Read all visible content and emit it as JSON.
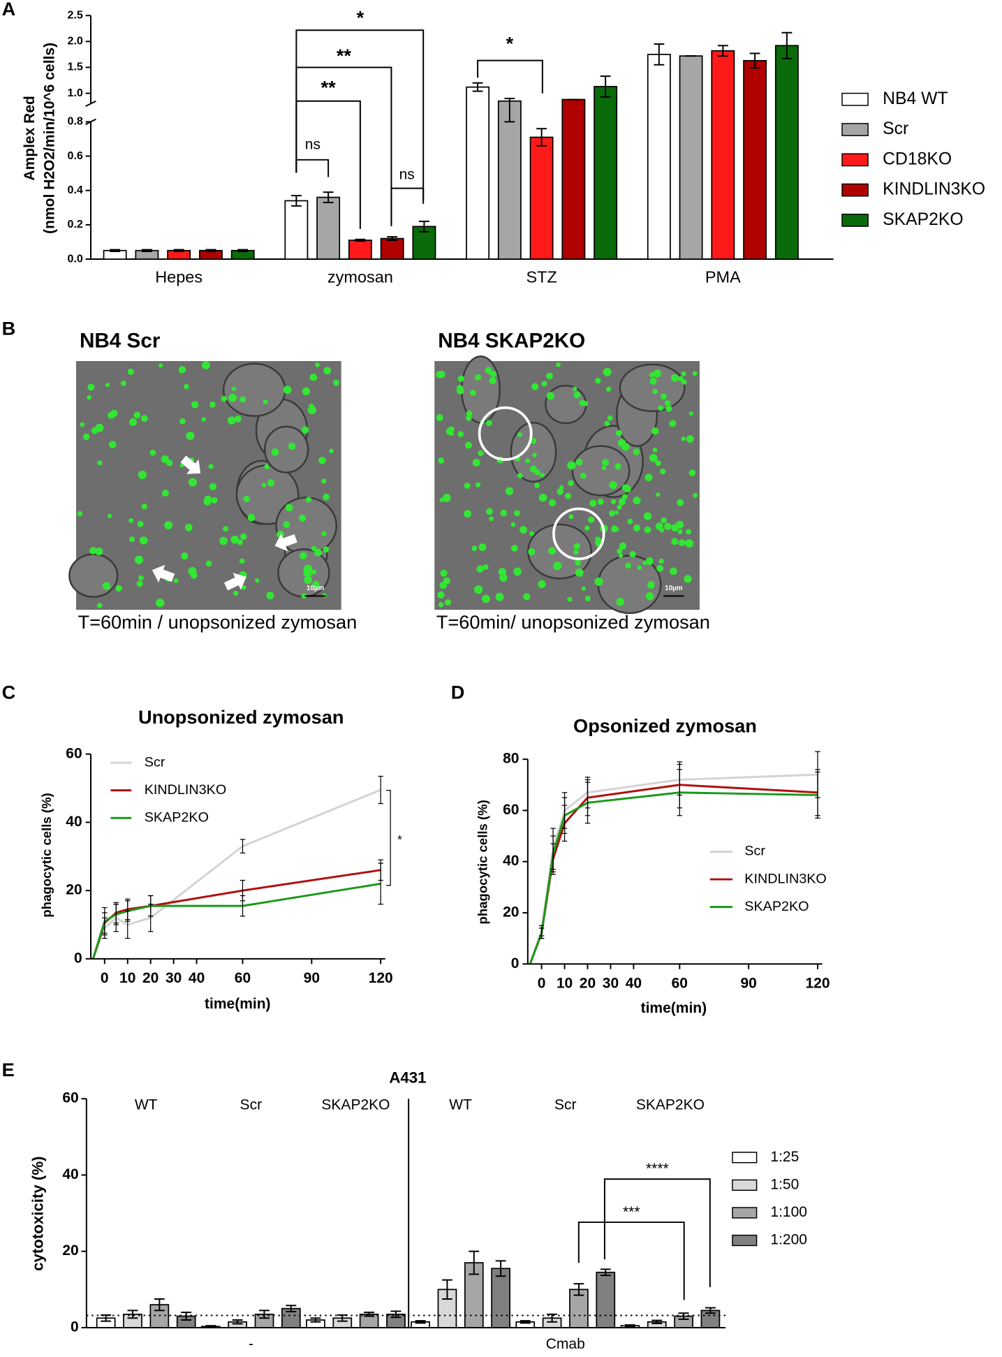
{
  "chart_data": [
    {
      "label": "A",
      "type": "bar",
      "y_label": [
        "Amplex Red",
        "(nmol H2O2/min/10^6 cells)"
      ],
      "categories": [
        "Hepes",
        "zymosan",
        "STZ",
        "PMA"
      ],
      "series": [
        {
          "name": "NB4 WT",
          "color": "#ffffff",
          "values": [
            0.05,
            0.34,
            1.12,
            1.75
          ],
          "errors": [
            0.005,
            0.03,
            0.08,
            0.2
          ]
        },
        {
          "name": "Scr",
          "color": "#a6a6a6",
          "values": [
            0.05,
            0.36,
            0.85,
            1.72
          ],
          "errors": [
            0.005,
            0.03,
            0.05,
            0
          ]
        },
        {
          "name": "CD18KO",
          "color": "#ff1a1a",
          "values": [
            0.05,
            0.11,
            0.71,
            1.82
          ],
          "errors": [
            0.005,
            0.005,
            0.05,
            0.1
          ]
        },
        {
          "name": "KINDLIN3KO",
          "color": "#b00000",
          "values": [
            0.05,
            0.12,
            0.88,
            1.63
          ],
          "errors": [
            0.005,
            0.01,
            0,
            0.14
          ]
        },
        {
          "name": "SKAP2KO",
          "color": "#0a6b0a",
          "values": [
            0.05,
            0.19,
            1.13,
            1.92
          ],
          "errors": [
            0.005,
            0.03,
            0.2,
            0.25
          ]
        }
      ],
      "ylim": [
        0,
        2.5
      ],
      "axis_break": 0.8,
      "yticks": [
        {
          "value": 0,
          "label": "0.0"
        },
        0.2,
        0.4,
        0.6,
        0.8,
        {
          "value": 1,
          "label": "1.0"
        },
        1.5,
        {
          "value": 2,
          "label": "2.0"
        },
        2.5
      ],
      "annotations": [
        "ns",
        "**",
        "**",
        "*",
        "ns",
        "*"
      ],
      "legend": "right"
    },
    {
      "label": "C",
      "type": "line",
      "title": "Unopsonized zymosan",
      "x_label": "time(min)",
      "y_label": "phagocytic cells (%)",
      "x": [
        -5,
        0,
        5,
        10,
        20,
        60,
        120
      ],
      "series": [
        {
          "name": "Scr",
          "color": "#d3d3d3",
          "values": [
            0,
            9,
            12,
            10,
            12,
            33,
            49.5
          ],
          "errors": [
            0,
            3,
            4,
            4,
            4,
            2,
            4
          ]
        },
        {
          "name": "KINDLIN3KO",
          "color": "#b01010",
          "values": [
            0,
            10.5,
            13.5,
            14.5,
            15.5,
            20,
            26
          ],
          "errors": [
            0,
            3,
            3,
            3,
            3,
            3,
            3
          ]
        },
        {
          "name": "SKAP2KO",
          "color": "#1a9a1a",
          "values": [
            0,
            11,
            13,
            14,
            15.5,
            15.5,
            22
          ],
          "errors": [
            0,
            4,
            3,
            3,
            3,
            3,
            6
          ]
        }
      ],
      "xlim": [
        -6,
        122
      ],
      "xticks": [
        0,
        10,
        20,
        30,
        40,
        60,
        90,
        120
      ],
      "ylim": [
        0,
        60
      ],
      "yticks": [
        0,
        20,
        40,
        60
      ],
      "annotations": [
        "*"
      ],
      "legend": "upper left"
    },
    {
      "label": "D",
      "type": "line",
      "title": "Opsonized zymosan",
      "x_label": "time(min)",
      "y_label": "phagocytic cells (%)",
      "x": [
        -5,
        0,
        5,
        10,
        20,
        60,
        120
      ],
      "series": [
        {
          "name": "Scr",
          "color": "#d3d3d3",
          "values": [
            0,
            13,
            45,
            60,
            67,
            72,
            74
          ],
          "errors": [
            0,
            2,
            8,
            7,
            6,
            6,
            9
          ]
        },
        {
          "name": "KINDLIN3KO",
          "color": "#b01010",
          "values": [
            0,
            12,
            41,
            55,
            65,
            70,
            67
          ],
          "errors": [
            0,
            2,
            6,
            7,
            7,
            9,
            9
          ]
        },
        {
          "name": "SKAP2KO",
          "color": "#1a9a1a",
          "values": [
            0,
            12,
            43,
            58,
            63,
            67,
            66
          ],
          "errors": [
            0,
            2,
            7,
            7,
            8,
            9,
            9
          ]
        }
      ],
      "xlim": [
        -6,
        122
      ],
      "xticks": [
        0,
        10,
        20,
        30,
        40,
        60,
        90,
        120
      ],
      "ylim": [
        0,
        80
      ],
      "yticks": [
        0,
        20,
        40,
        60,
        80
      ],
      "legend": "center right"
    },
    {
      "label": "E",
      "type": "bar",
      "title": "A431",
      "y_label": "cytotoxicity (%)",
      "groups": [
        "-",
        "Cmab"
      ],
      "categories": [
        "WT",
        "Scr",
        "SKAP2KO",
        "WT",
        "Scr",
        "SKAP2KO"
      ],
      "series": [
        {
          "name": "1:25",
          "color": "#ffffff",
          "values": [
            2.5,
            0.3,
            2,
            1.5,
            1.5,
            0.5
          ],
          "errors": [
            0.8,
            0.2,
            0.5,
            0.3,
            0.3,
            0.2
          ]
        },
        {
          "name": "1:50",
          "color": "#d9d9d9",
          "values": [
            3.5,
            1.5,
            2.5,
            10,
            2.5,
            1.5
          ],
          "errors": [
            1,
            0.5,
            0.8,
            2.5,
            1,
            0.4
          ]
        },
        {
          "name": "1:100",
          "color": "#a6a6a6",
          "values": [
            6,
            3.5,
            3.5,
            17,
            10,
            3
          ],
          "errors": [
            1.5,
            1,
            0.5,
            3,
            1.5,
            0.8
          ]
        },
        {
          "name": "1:200",
          "color": "#808080",
          "values": [
            3,
            5,
            3.5,
            15.5,
            14.5,
            4.5
          ],
          "errors": [
            1,
            0.8,
            0.8,
            2,
            0.8,
            0.7
          ]
        }
      ],
      "ylim": [
        0,
        60
      ],
      "yticks": [
        0,
        20,
        40,
        60
      ],
      "reference_line": 3.2,
      "annotations": [
        "***",
        "****"
      ],
      "legend": "right"
    }
  ],
  "image_panel": {
    "label": "B",
    "images": [
      {
        "title": "NB4 Scr",
        "caption": "T=60min / unopsonized zymosan",
        "scale_bar": "10µm"
      },
      {
        "title": "NB4 SKAP2KO",
        "caption": "T=60min/ unopsonized zymosan",
        "scale_bar": "10µm"
      }
    ]
  }
}
